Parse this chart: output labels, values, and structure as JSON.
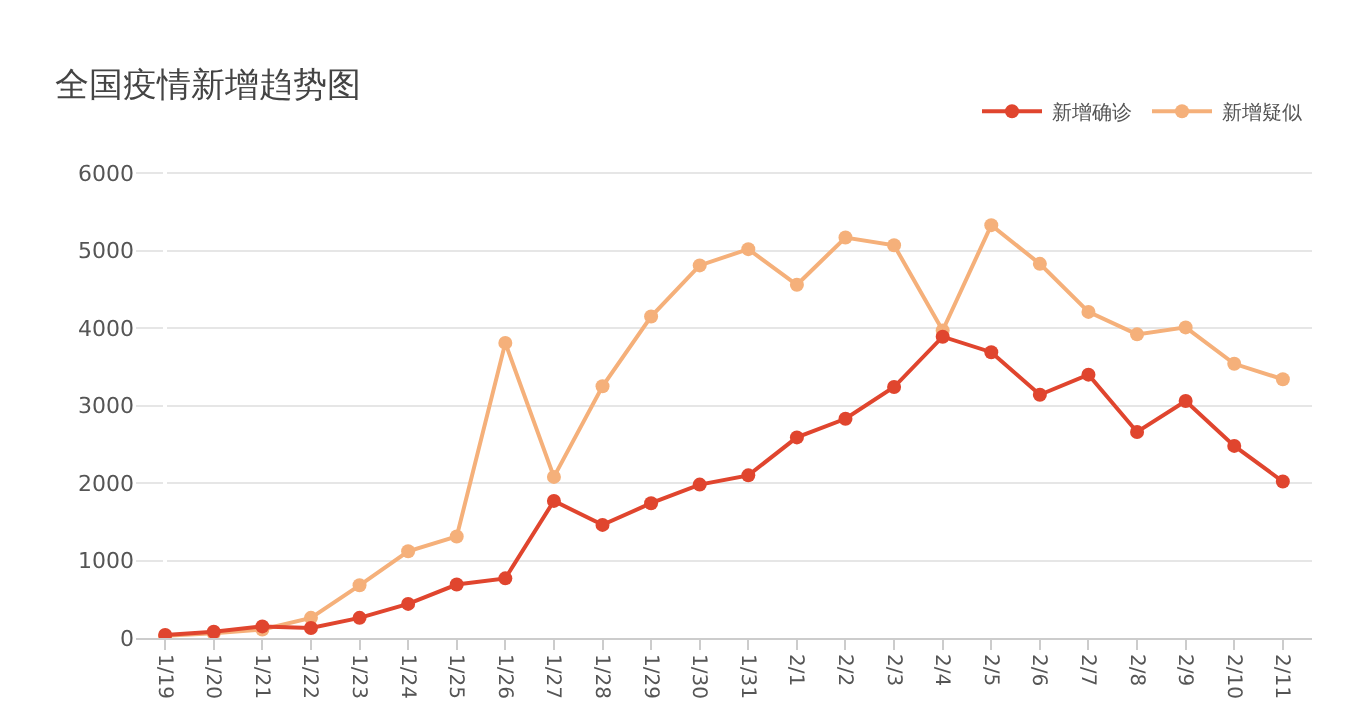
{
  "chart_data": {
    "type": "line",
    "title": "全国疫情新增趋势图",
    "categories": [
      "1/19",
      "1/20",
      "1/21",
      "1/22",
      "1/23",
      "1/24",
      "1/25",
      "1/26",
      "1/27",
      "1/28",
      "1/29",
      "1/30",
      "1/31",
      "2/1",
      "2/2",
      "2/3",
      "2/4",
      "2/5",
      "2/6",
      "2/7",
      "2/8",
      "2/9",
      "2/10",
      "2/11"
    ],
    "series": [
      {
        "name": "新增确诊",
        "color": "#e0452e",
        "values": [
          40,
          80,
          150,
          130,
          260,
          440,
          690,
          770,
          1770,
          1460,
          1740,
          1980,
          2100,
          2590,
          2830,
          3240,
          3890,
          3690,
          3140,
          3400,
          2660,
          3060,
          2480,
          2020
        ]
      },
      {
        "name": "新增疑似",
        "color": "#f5b07a",
        "values": [
          30,
          60,
          110,
          260,
          680,
          1120,
          1310,
          3810,
          2080,
          3250,
          4150,
          4810,
          5020,
          4560,
          5170,
          5070,
          3970,
          5330,
          4830,
          4210,
          3920,
          4010,
          3540,
          3340
        ]
      }
    ],
    "ylim": [
      0,
      6300
    ],
    "yticks": [
      0,
      1000,
      2000,
      3000,
      4000,
      5000,
      6000
    ],
    "grid": "y",
    "legend": "top right",
    "marker": "circle",
    "line_style": "solid"
  }
}
